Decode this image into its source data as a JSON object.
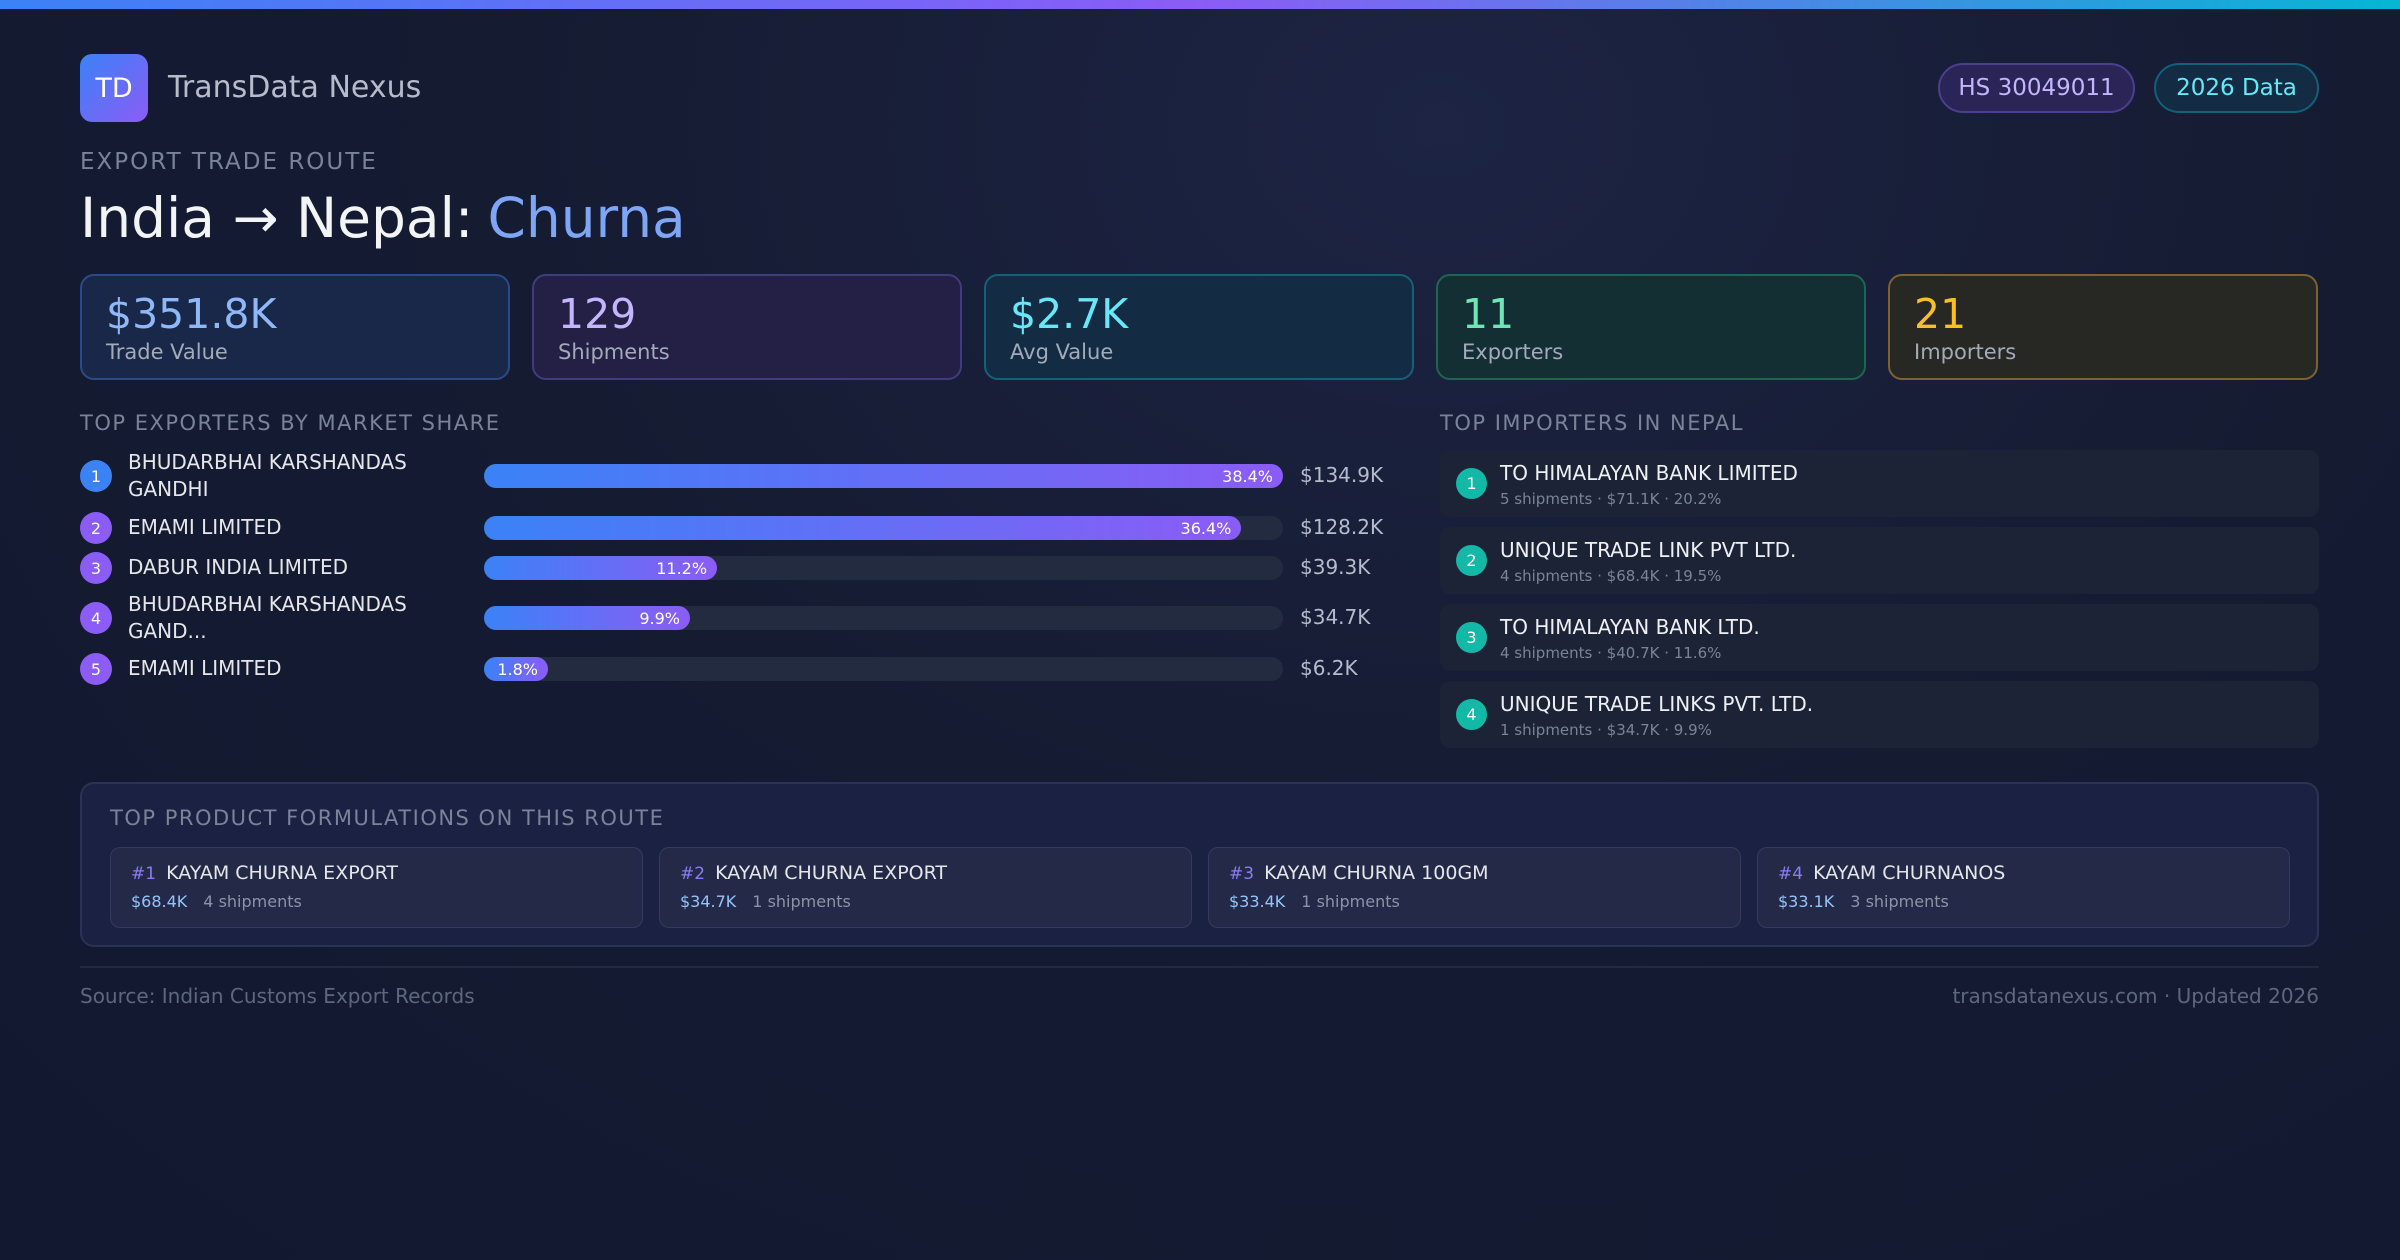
{
  "header": {
    "logo": "TD",
    "brand": "TransData Nexus",
    "badges": [
      "HS 30049011",
      "2026 Data"
    ]
  },
  "route": {
    "eyebrow": "EXPORT TRADE ROUTE",
    "title_prefix": "India → Nepal:",
    "title_highlight": "Churna"
  },
  "kpis": [
    {
      "value": "$351.8K",
      "label": "Trade Value"
    },
    {
      "value": "129",
      "label": "Shipments"
    },
    {
      "value": "$2.7K",
      "label": "Avg Value"
    },
    {
      "value": "11",
      "label": "Exporters"
    },
    {
      "value": "21",
      "label": "Importers"
    }
  ],
  "exporters": {
    "title": "TOP EXPORTERS BY MARKET SHARE",
    "rows": [
      {
        "rank": "1",
        "name": "BHUDARBHAI KARSHANDAS GANDHI",
        "share": 38.4,
        "share_label": "38.4%",
        "value": "$134.9K"
      },
      {
        "rank": "2",
        "name": "EMAMI LIMITED",
        "share": 36.4,
        "share_label": "36.4%",
        "value": "$128.2K"
      },
      {
        "rank": "3",
        "name": "DABUR INDIA LIMITED",
        "share": 11.2,
        "share_label": "11.2%",
        "value": "$39.3K"
      },
      {
        "rank": "4",
        "name": "BHUDARBHAI KARSHANDAS GAND...",
        "share": 9.9,
        "share_label": "9.9%",
        "value": "$34.7K"
      },
      {
        "rank": "5",
        "name": "EMAMI LIMITED",
        "share": 1.8,
        "share_label": "1.8%",
        "value": "$6.2K"
      }
    ]
  },
  "importers": {
    "title": "TOP IMPORTERS IN NEPAL",
    "rows": [
      {
        "rank": "1",
        "name": "TO HIMALAYAN BANK LIMITED",
        "detail": "5 shipments · $71.1K · 20.2%"
      },
      {
        "rank": "2",
        "name": "UNIQUE TRADE LINK PVT LTD.",
        "detail": "4 shipments · $68.4K · 19.5%"
      },
      {
        "rank": "3",
        "name": "TO HIMALAYAN BANK LTD.",
        "detail": "4 shipments · $40.7K · 11.6%"
      },
      {
        "rank": "4",
        "name": "UNIQUE TRADE LINKS PVT. LTD.",
        "detail": "1 shipments · $34.7K · 9.9%"
      }
    ]
  },
  "products": {
    "title": "TOP PRODUCT FORMULATIONS ON THIS ROUTE",
    "items": [
      {
        "rank": "#1",
        "name": "KAYAM CHURNA EXPORT",
        "value": "$68.4K",
        "shipments": "4 shipments"
      },
      {
        "rank": "#2",
        "name": "KAYAM CHURNA EXPORT",
        "value": "$34.7K",
        "shipments": "1 shipments"
      },
      {
        "rank": "#3",
        "name": "KAYAM CHURNA 100GM",
        "value": "$33.4K",
        "shipments": "1 shipments"
      },
      {
        "rank": "#4",
        "name": "KAYAM CHURNANOS",
        "value": "$33.1K",
        "shipments": "3 shipments"
      }
    ]
  },
  "footer": {
    "source": "Source: Indian Customs Export Records",
    "site": "transdatanexus.com · Updated 2026"
  }
}
